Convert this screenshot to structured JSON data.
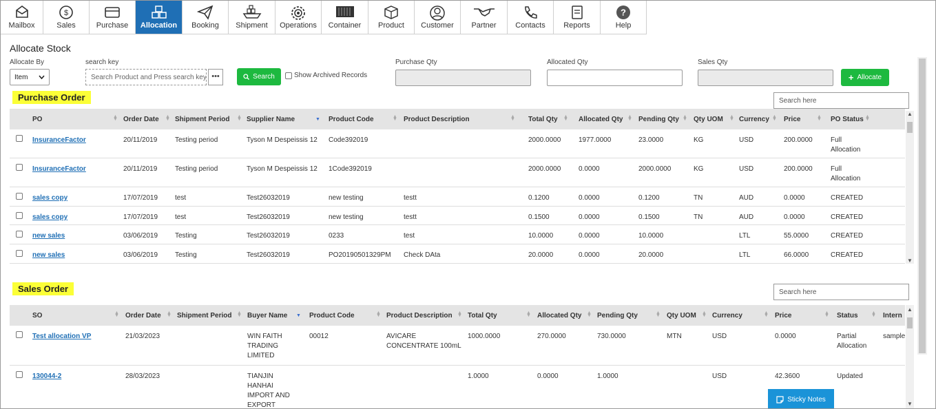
{
  "nav": {
    "items": [
      {
        "label": "Mailbox",
        "icon": "mailbox-icon"
      },
      {
        "label": "Sales",
        "icon": "dollar-icon"
      },
      {
        "label": "Purchase",
        "icon": "card-icon"
      },
      {
        "label": "Allocation",
        "icon": "boxes-icon"
      },
      {
        "label": "Booking",
        "icon": "paper-plane-icon"
      },
      {
        "label": "Shipment",
        "icon": "ship-icon"
      },
      {
        "label": "Operations",
        "icon": "gear-icon"
      },
      {
        "label": "Container",
        "icon": "container-icon"
      },
      {
        "label": "Product",
        "icon": "box-icon"
      },
      {
        "label": "Customer",
        "icon": "user-icon"
      },
      {
        "label": "Partner",
        "icon": "handshake-icon"
      },
      {
        "label": "Contacts",
        "icon": "phone-icon"
      },
      {
        "label": "Reports",
        "icon": "document-icon"
      },
      {
        "label": "Help",
        "icon": "help-icon"
      }
    ],
    "active": "Allocation"
  },
  "page": {
    "title": "Allocate Stock"
  },
  "filters": {
    "allocate_by_label": "Allocate By",
    "allocate_by_value": "Item",
    "search_key_label": "search key",
    "search_key_placeholder": "Search Product and Press search key",
    "more_label": "•••",
    "search_button": "Search",
    "show_archived_label": "Show Archived Records",
    "purchase_qty_label": "Purchase Qty",
    "allocated_qty_label": "Allocated Qty",
    "sales_qty_label": "Sales Qty",
    "allocate_button": "Allocate"
  },
  "purchase_order": {
    "title": "Purchase Order",
    "search_placeholder": "Search here",
    "columns": [
      "PO",
      "Order Date",
      "Shipment Period",
      "Supplier Name",
      "Product Code",
      "Product Description",
      "Total Qty",
      "Allocated Qty",
      "Pending Qty",
      "Qty UOM",
      "Currency",
      "Price",
      "PO Status"
    ],
    "rows": [
      {
        "po": "InsuranceFactor",
        "date": "20/11/2019",
        "period": "Testing period",
        "supplier": "Tyson M Despeissis 12",
        "code": "Code392019",
        "desc": "",
        "total": "2000.0000",
        "allocated": "1977.0000",
        "pending": "23.0000",
        "uom": "KG",
        "currency": "USD",
        "price": "200.0000",
        "status": "Full Allocation"
      },
      {
        "po": "InsuranceFactor",
        "date": "20/11/2019",
        "period": "Testing period",
        "supplier": "Tyson M Despeissis 12",
        "code": "1Code392019",
        "desc": "",
        "total": "2000.0000",
        "allocated": "0.0000",
        "pending": "2000.0000",
        "uom": "KG",
        "currency": "USD",
        "price": "200.0000",
        "status": "Full Allocation"
      },
      {
        "po": "sales copy",
        "date": "17/07/2019",
        "period": "test",
        "supplier": "Test26032019",
        "code": "new testing",
        "desc": "testt",
        "total": "0.1200",
        "allocated": "0.0000",
        "pending": "0.1200",
        "uom": "TN",
        "currency": "AUD",
        "price": "0.0000",
        "status": "CREATED"
      },
      {
        "po": "sales copy",
        "date": "17/07/2019",
        "period": "test",
        "supplier": "Test26032019",
        "code": "new testing",
        "desc": "testt",
        "total": "0.1500",
        "allocated": "0.0000",
        "pending": "0.1500",
        "uom": "TN",
        "currency": "AUD",
        "price": "0.0000",
        "status": "CREATED"
      },
      {
        "po": "new sales",
        "date": "03/06/2019",
        "period": "Testing",
        "supplier": "Test26032019",
        "code": "0233",
        "desc": "test",
        "total": "10.0000",
        "allocated": "0.0000",
        "pending": "10.0000",
        "uom": "",
        "currency": "LTL",
        "price": "55.0000",
        "status": "CREATED"
      },
      {
        "po": "new sales",
        "date": "03/06/2019",
        "period": "Testing",
        "supplier": "Test26032019",
        "code": "PO20190501329PM",
        "desc": "Check DAta",
        "total": "20.0000",
        "allocated": "0.0000",
        "pending": "20.0000",
        "uom": "",
        "currency": "LTL",
        "price": "66.0000",
        "status": "CREATED"
      }
    ]
  },
  "sales_order": {
    "title": "Sales Order",
    "search_placeholder": "Search  here",
    "columns": [
      "SO",
      "Order Date",
      "Shipment Period",
      "Buyer Name",
      "Product Code",
      "Product Description",
      "Total Qty",
      "Allocated Qty",
      "Pending Qty",
      "Qty UOM",
      "Currency",
      "Price",
      "Status",
      "Intern"
    ],
    "rows": [
      {
        "so": "Test allocation VP",
        "date": "21/03/2023",
        "period": "",
        "buyer": "WIN FAITH TRADING LIMITED",
        "code": "00012",
        "desc": "AVICARE CONCENTRATE 100mL",
        "total": "1000.0000",
        "allocated": "270.0000",
        "pending": "730.0000",
        "uom": "MTN",
        "currency": "USD",
        "price": "0.0000",
        "status": "Partial Allocation",
        "intern": "sample"
      },
      {
        "so": "130044-2",
        "date": "28/03/2023",
        "period": "",
        "buyer": "TIANJIN HANHAI IMPORT AND EXPORT CO.,LTD",
        "code": "",
        "desc": "",
        "total": "1.0000",
        "allocated": "0.0000",
        "pending": "1.0000",
        "uom": "",
        "currency": "USD",
        "price": "42.3600",
        "status": "Updated",
        "intern": ""
      }
    ]
  },
  "sticky_notes_label": "Sticky Notes",
  "colors": {
    "accent": "#1f6fb5",
    "green": "#1db93f",
    "highlight": "#fbff37",
    "sticky": "#1a93d8"
  }
}
